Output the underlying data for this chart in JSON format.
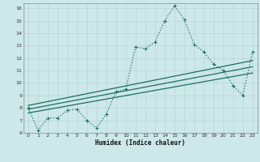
{
  "xlabel": "Humidex (Indice chaleur)",
  "xlim": [
    -0.5,
    23.5
  ],
  "ylim": [
    6,
    16.4
  ],
  "yticks": [
    6,
    7,
    8,
    9,
    10,
    11,
    12,
    13,
    14,
    15,
    16
  ],
  "xticks": [
    0,
    1,
    2,
    3,
    4,
    5,
    6,
    7,
    8,
    9,
    10,
    11,
    12,
    13,
    14,
    15,
    16,
    17,
    18,
    19,
    20,
    21,
    22,
    23
  ],
  "bg_color": "#cde8e8",
  "grid_major_color": "#b8d4d4",
  "grid_minor_color": "#d0e6e6",
  "line_color": "#1a6e64",
  "main_x": [
    0,
    1,
    2,
    3,
    4,
    5,
    6,
    7,
    8,
    9,
    10,
    11,
    12,
    13,
    14,
    15,
    16,
    17,
    18,
    19,
    20,
    21,
    22,
    23
  ],
  "main_y": [
    8.0,
    6.2,
    7.2,
    7.2,
    7.8,
    7.9,
    7.0,
    6.4,
    7.5,
    9.3,
    9.5,
    12.9,
    12.75,
    13.3,
    15.0,
    16.2,
    15.1,
    13.1,
    12.5,
    11.5,
    11.0,
    9.8,
    9.0,
    12.5
  ],
  "reg1_y_start": 7.6,
  "reg1_y_end": 10.8,
  "reg2_y_start": 7.9,
  "reg2_y_end": 11.3,
  "reg3_y_start": 8.2,
  "reg3_y_end": 11.8
}
